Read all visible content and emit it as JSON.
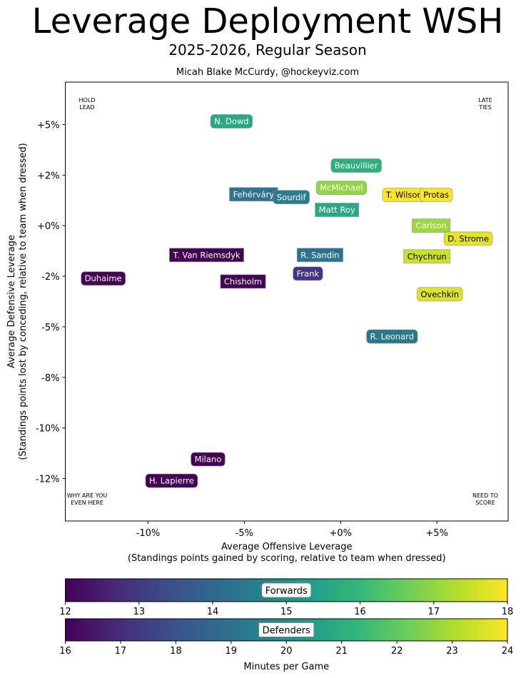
{
  "header": {
    "title": "Leverage Deployment WSH",
    "subtitle": "2025-2026, Regular Season",
    "credit": "Micah Blake McCurdy, @hockeyviz.com"
  },
  "chart_data": {
    "type": "scatter",
    "title": "Leverage Deployment WSH",
    "subtitle": "2025-2026, Regular Season",
    "xlabel": "Average Offensive Leverage",
    "xlabel2": "(Standings points gained by scoring, relative to team when dressed)",
    "ylabel": "Average Defensive Leverage",
    "ylabel2": "(Standings points lost by conceding, relative to team when dressed)",
    "xlim": [
      -14.3,
      8.7
    ],
    "ylim": [
      -14.6,
      7.1
    ],
    "x_ticks": [
      {
        "value": -10,
        "label": "-10%"
      },
      {
        "value": -5,
        "label": "-5%"
      },
      {
        "value": 0,
        "label": "+0%"
      },
      {
        "value": 5,
        "label": "+5%"
      }
    ],
    "y_ticks": [
      {
        "value": 5,
        "label": "+5%"
      },
      {
        "value": 2.5,
        "label": "+2%"
      },
      {
        "value": 0,
        "label": "+0%"
      },
      {
        "value": -2.5,
        "label": "-2%"
      },
      {
        "value": -5,
        "label": "-5%"
      },
      {
        "value": -7.5,
        "label": "-8%"
      },
      {
        "value": -10,
        "label": "-10%"
      },
      {
        "value": -12.5,
        "label": "-12%"
      }
    ],
    "grid": false,
    "corner_labels": {
      "top_left": [
        "HOLD",
        "LEAD"
      ],
      "top_right": [
        "LATE",
        "TIES"
      ],
      "bottom_left": [
        "WHY ARE YOU",
        "EVEN HERE"
      ],
      "bottom_right": [
        "NEED TO",
        "SCORE"
      ]
    },
    "players": [
      {
        "name": "N. Dowd",
        "position": "F",
        "x": -5.67,
        "y": 5.16,
        "toi": 15.6
      },
      {
        "name": "Beauvillier",
        "position": "F",
        "x": 0.81,
        "y": 2.97,
        "toi": 15.8
      },
      {
        "name": "McMichael",
        "position": "F",
        "x": 0.04,
        "y": 1.87,
        "toi": 17.0
      },
      {
        "name": "Fehérváry",
        "position": "D",
        "x": -4.52,
        "y": 1.55,
        "toi": 19.0
      },
      {
        "name": "Sourdif",
        "position": "F",
        "x": -2.56,
        "y": 1.41,
        "toi": 14.5
      },
      {
        "name": "Matt Roy",
        "position": "D",
        "x": -0.19,
        "y": 0.78,
        "toi": 20.8
      },
      {
        "name": "T. Wilson",
        "position": "F",
        "x": 3.3,
        "y": 1.52,
        "toi": 18.0
      },
      {
        "name": "Protas",
        "position": "F",
        "x": 4.96,
        "y": 1.52,
        "toi": 18.0
      },
      {
        "name": "Carlson",
        "position": "D",
        "x": 4.7,
        "y": 0.0,
        "toi": 22.8
      },
      {
        "name": "D. Strome",
        "position": "F",
        "x": 6.63,
        "y": -0.64,
        "toi": 17.8
      },
      {
        "name": "T. Van Riemsdyk",
        "position": "D",
        "x": -6.96,
        "y": -1.45,
        "toi": 16.0
      },
      {
        "name": "R. Sandin",
        "position": "D",
        "x": -1.07,
        "y": -1.45,
        "toi": 19.0
      },
      {
        "name": "Chychrun",
        "position": "D",
        "x": 4.48,
        "y": -1.52,
        "toi": 23.4
      },
      {
        "name": "Duhaime",
        "position": "F",
        "x": -12.33,
        "y": -2.61,
        "toi": 12.0
      },
      {
        "name": "Chisholm",
        "position": "D",
        "x": -5.07,
        "y": -2.76,
        "toi": 16.0
      },
      {
        "name": "Frank",
        "position": "F",
        "x": -1.7,
        "y": -2.37,
        "toi": 12.9
      },
      {
        "name": "Ovechkin",
        "position": "F",
        "x": 5.15,
        "y": -3.39,
        "toi": 17.7
      },
      {
        "name": "R. Leonard",
        "position": "F",
        "x": 2.67,
        "y": -5.48,
        "toi": 14.4
      },
      {
        "name": "Milano",
        "position": "F",
        "x": -6.89,
        "y": -11.55,
        "toi": 12.0
      },
      {
        "name": "H. Lapierre",
        "position": "F",
        "x": -8.78,
        "y": -12.61,
        "toi": 12.0
      }
    ],
    "colorbars": [
      {
        "label": "Forwards",
        "range": [
          12,
          18
        ],
        "ticks": [
          "12",
          "13",
          "14",
          "15",
          "16",
          "17",
          "18"
        ]
      },
      {
        "label": "Defenders",
        "range": [
          16,
          24
        ],
        "ticks": [
          "16",
          "17",
          "18",
          "19",
          "20",
          "21",
          "22",
          "23",
          "24"
        ]
      }
    ],
    "colorbar_xlabel": "Minutes per Game",
    "colormap": [
      "#440154",
      "#482878",
      "#3e4a89",
      "#31688e",
      "#26828e",
      "#1f9e89",
      "#35b779",
      "#6ece58",
      "#b5de2b",
      "#fde725"
    ]
  }
}
